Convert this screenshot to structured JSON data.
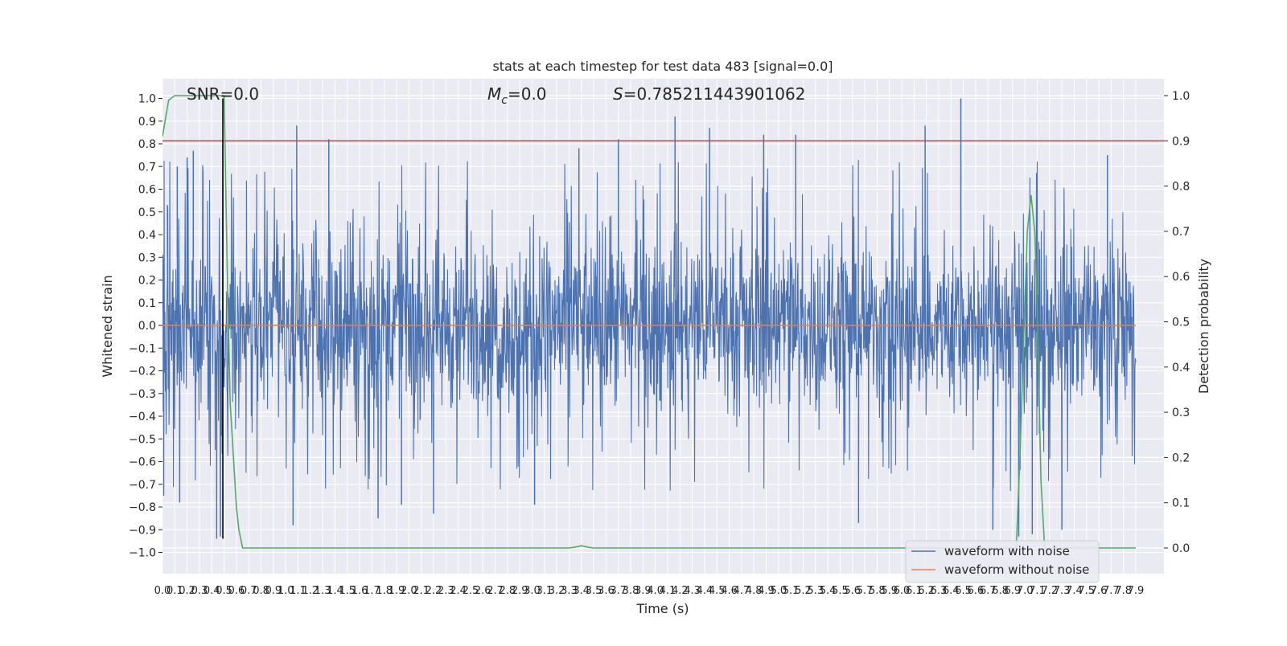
{
  "chart_data": {
    "type": "line",
    "title": "stats at each timestep for test data 483 [signal=0.0]",
    "xlabel": "Time (s)",
    "ylabel": "Whitened strain",
    "y2label": "Detection probability",
    "xlim": [
      0.0,
      7.9
    ],
    "ylim": [
      -1.05,
      1.05
    ],
    "y2lim": [
      -0.02,
      1.02
    ],
    "x_ticks": [
      0.0,
      0.1,
      0.2,
      0.3,
      0.4,
      0.5,
      0.6,
      0.7,
      0.8,
      0.9,
      1.0,
      1.1,
      1.2,
      1.3,
      1.4,
      1.5,
      1.6,
      1.7,
      1.8,
      1.9,
      2.0,
      2.1,
      2.2,
      2.3,
      2.4,
      2.5,
      2.6,
      2.7,
      2.8,
      2.9,
      3.0,
      3.1,
      3.2,
      3.3,
      3.4,
      3.5,
      3.6,
      3.7,
      3.8,
      3.9,
      4.0,
      4.1,
      4.2,
      4.3,
      4.4,
      4.5,
      4.6,
      4.7,
      4.8,
      4.9,
      5.0,
      5.1,
      5.2,
      5.3,
      5.4,
      5.5,
      5.6,
      5.7,
      5.8,
      5.9,
      6.0,
      6.1,
      6.2,
      6.3,
      6.4,
      6.5,
      6.6,
      6.7,
      6.8,
      6.9,
      7.0,
      7.1,
      7.2,
      7.3,
      7.4,
      7.5,
      7.6,
      7.7,
      7.8,
      7.9
    ],
    "y_ticks": [
      1.0,
      0.9,
      0.8,
      0.7,
      0.6,
      0.5,
      0.4,
      0.3,
      0.2,
      0.1,
      0.0,
      -0.1,
      -0.2,
      -0.3,
      -0.4,
      -0.5,
      -0.6,
      -0.7,
      -0.8,
      -0.9,
      -1.0
    ],
    "y_tick_labels": [
      "1.0",
      "0.9",
      "0.8",
      "0.7",
      "0.6",
      "0.5",
      "0.4",
      "0.3",
      "0.2",
      "0.1",
      "0.0",
      "−0.1",
      "−0.2",
      "−0.3",
      "−0.4",
      "−0.5",
      "−0.6",
      "−0.7",
      "−0.8",
      "−0.9",
      "−1.0"
    ],
    "y2_ticks": [
      1.0,
      0.9,
      0.8,
      0.7,
      0.6,
      0.5,
      0.4,
      0.3,
      0.2,
      0.1,
      0.0
    ],
    "y2_tick_labels": [
      "1.0",
      "0.9",
      "0.8",
      "0.7",
      "0.6",
      "0.5",
      "0.4",
      "0.3",
      "0.2",
      "0.1",
      "0.0"
    ],
    "grid": true,
    "legend_position": "lower-right",
    "annotations": {
      "snr": "SNR=0.0",
      "mc_symbol": "M",
      "mc_sub": "c",
      "mc_value": "=0.0",
      "s_symbol": "S",
      "s_value": "=0.785211443901062"
    },
    "series": [
      {
        "name": "waveform with noise",
        "color": "#4c72b0",
        "axis": "left",
        "description_kind": "dense noise",
        "core_amplitude": 0.42,
        "notable_peaks": [
          {
            "x": 0.04,
            "y": 0.53
          },
          {
            "x": 0.12,
            "y": 0.7
          },
          {
            "x": 0.2,
            "y": 0.74
          },
          {
            "x": 0.25,
            "y": 0.77
          },
          {
            "x": 0.49,
            "y": 0.8
          },
          {
            "x": 1.09,
            "y": 0.88
          },
          {
            "x": 1.35,
            "y": 0.82
          },
          {
            "x": 3.38,
            "y": 0.78
          },
          {
            "x": 3.7,
            "y": 0.82
          },
          {
            "x": 4.16,
            "y": 0.92
          },
          {
            "x": 4.44,
            "y": 0.87
          },
          {
            "x": 4.88,
            "y": 0.84
          },
          {
            "x": 5.14,
            "y": 0.84
          },
          {
            "x": 6.19,
            "y": 0.88
          },
          {
            "x": 6.48,
            "y": 1.0
          },
          {
            "x": 7.67,
            "y": 0.75
          }
        ],
        "notable_troughs": [
          {
            "x": 0.01,
            "y": -0.75
          },
          {
            "x": 0.14,
            "y": -0.78
          },
          {
            "x": 0.44,
            "y": -0.94
          },
          {
            "x": 0.47,
            "y": -0.93
          },
          {
            "x": 1.06,
            "y": -0.88
          },
          {
            "x": 1.75,
            "y": -0.85
          },
          {
            "x": 1.94,
            "y": -0.79
          },
          {
            "x": 2.2,
            "y": -0.83
          },
          {
            "x": 3.02,
            "y": -0.79
          },
          {
            "x": 5.65,
            "y": -0.87
          },
          {
            "x": 6.74,
            "y": -0.9
          },
          {
            "x": 6.95,
            "y": -0.93
          },
          {
            "x": 7.06,
            "y": -0.92
          },
          {
            "x": 7.3,
            "y": -0.9
          }
        ]
      },
      {
        "name": "waveform without noise",
        "color": "#dd8452",
        "axis": "left",
        "x": [
          0.0,
          7.9
        ],
        "y": [
          0.0,
          0.0
        ]
      },
      {
        "color": "#55a868",
        "axis": "right",
        "x": [
          0.0,
          0.05,
          0.1,
          0.2,
          0.3,
          0.4,
          0.48,
          0.5,
          0.53,
          0.55,
          0.6,
          0.62,
          0.65,
          1.0,
          2.0,
          3.0,
          3.2,
          3.3,
          3.35,
          3.4,
          3.45,
          3.5,
          3.6,
          4.0,
          5.0,
          6.0,
          6.9,
          6.93,
          6.96,
          7.0,
          7.02,
          7.05,
          7.08,
          7.1,
          7.13,
          7.16,
          7.2,
          7.5,
          7.9
        ],
        "y": [
          0.91,
          0.99,
          1.0,
          1.0,
          1.0,
          1.0,
          1.0,
          1.0,
          0.55,
          0.32,
          0.09,
          0.04,
          0.0,
          0.0,
          0.0,
          0.0,
          0.0,
          0.0,
          0.002,
          0.005,
          0.002,
          0.0,
          0.0,
          0.0,
          0.0,
          0.0,
          0.0,
          0.0,
          0.2,
          0.55,
          0.7,
          0.78,
          0.7,
          0.52,
          0.15,
          0.0,
          0.0,
          0.0,
          0.0
        ]
      }
    ],
    "threshold_line": {
      "color": "#c44e52",
      "axis": "right",
      "y": 0.9
    },
    "marker_line": {
      "color": "#000000",
      "axis": "x",
      "x": 0.49,
      "y_from": -0.94,
      "y_to": 1.0
    }
  }
}
